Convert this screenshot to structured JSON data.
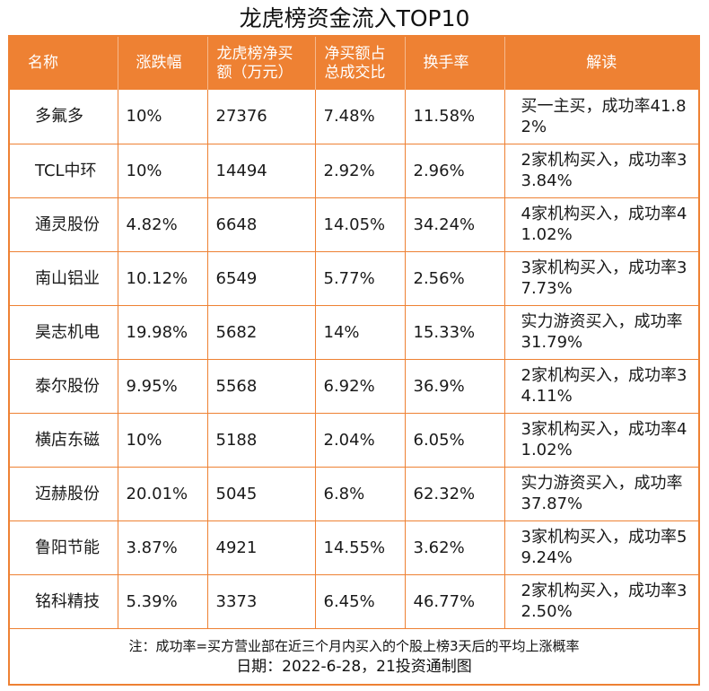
{
  "title": "龙虎榜资金流入TOP10",
  "columns": [
    "名称",
    "涨跌幅",
    "龙虎榜净买额（万元）",
    "净买额占总成交比",
    "换手率",
    "解读"
  ],
  "column_lines": {
    "c3_line1": "龙虎榜净买",
    "c3_line2": "额（万元）",
    "c4_line1": "净买额占",
    "c4_line2": "总成交比"
  },
  "rows": [
    {
      "name": "多氟多",
      "change": "10%",
      "net_buy": "27376",
      "ratio": "7.48%",
      "turnover": "11.58%",
      "comment": "买一主买，成功率41.82%"
    },
    {
      "name": "TCL中环",
      "change": "10%",
      "net_buy": "14494",
      "ratio": "2.92%",
      "turnover": "2.96%",
      "comment": "2家机构买入，成功率33.84%"
    },
    {
      "name": "通灵股份",
      "change": "4.82%",
      "net_buy": "6648",
      "ratio": "14.05%",
      "turnover": "34.24%",
      "comment": "4家机构买入，成功率41.02%"
    },
    {
      "name": "南山铝业",
      "change": "10.12%",
      "net_buy": "6549",
      "ratio": "5.77%",
      "turnover": "2.56%",
      "comment": "3家机构买入，成功率37.73%"
    },
    {
      "name": "昊志机电",
      "change": "19.98%",
      "net_buy": "5682",
      "ratio": "14%",
      "turnover": "15.33%",
      "comment": "实力游资买入，成功率31.79%"
    },
    {
      "name": "泰尔股份",
      "change": "9.95%",
      "net_buy": "5568",
      "ratio": "6.92%",
      "turnover": "36.9%",
      "comment": "2家机构买入，成功率34.11%"
    },
    {
      "name": "横店东磁",
      "change": "10%",
      "net_buy": "5188",
      "ratio": "2.04%",
      "turnover": "6.05%",
      "comment": "3家机构买入，成功率41.02%"
    },
    {
      "name": "迈赫股份",
      "change": "20.01%",
      "net_buy": "5045",
      "ratio": "6.8%",
      "turnover": "62.32%",
      "comment": "实力游资买入，成功率37.87%"
    },
    {
      "name": "鲁阳节能",
      "change": "3.87%",
      "net_buy": "4921",
      "ratio": "14.55%",
      "turnover": "3.62%",
      "comment": "3家机构买入，成功率59.24%"
    },
    {
      "name": "铭科精技",
      "change": "5.39%",
      "net_buy": "3373",
      "ratio": "6.45%",
      "turnover": "46.77%",
      "comment": "2家机构买入，成功率32.50%"
    }
  ],
  "footnote": "注：成功率=买方营业部在近三个月内买入的个股上榜3天后的平均上涨概率",
  "date_line": "日期：2022-6-28，21投资通制图",
  "colors": {
    "accent": "#ee8133",
    "header_text": "#ffffff"
  }
}
